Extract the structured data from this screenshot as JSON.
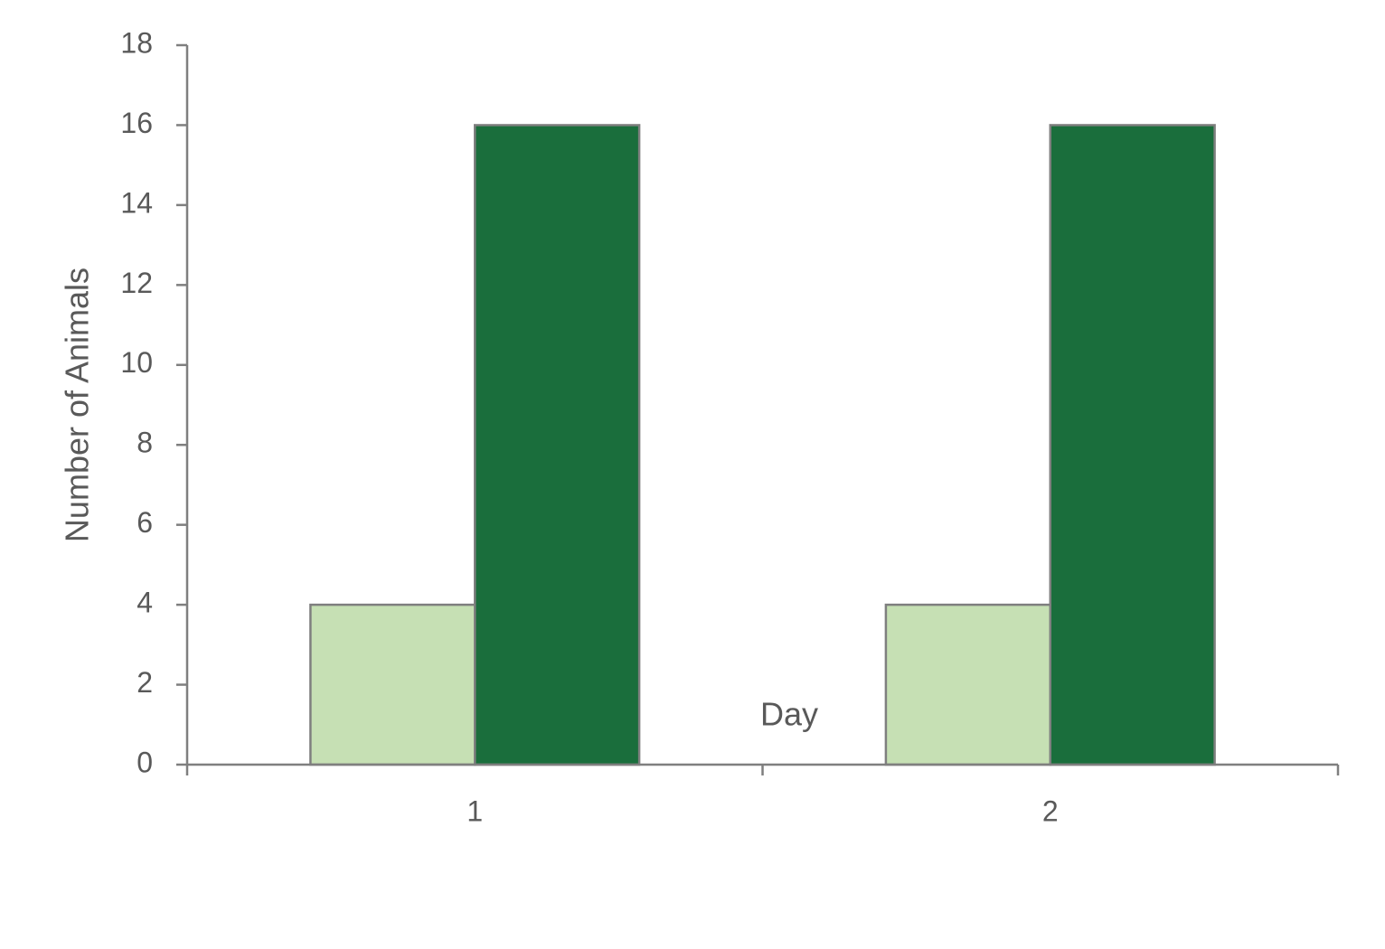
{
  "chart_data": {
    "type": "bar",
    "x_label": "Day",
    "y_label": "Number of Animals",
    "categories": [
      "1",
      "2"
    ],
    "series": [
      {
        "color": "#c6e0b4",
        "values": [
          4,
          4
        ]
      },
      {
        "color": "#1a6e3c",
        "values": [
          16,
          16
        ]
      }
    ],
    "ylim": [
      0,
      18
    ],
    "yticks": [
      0,
      2,
      4,
      6,
      8,
      10,
      12,
      14,
      16,
      18
    ],
    "grid": false
  }
}
